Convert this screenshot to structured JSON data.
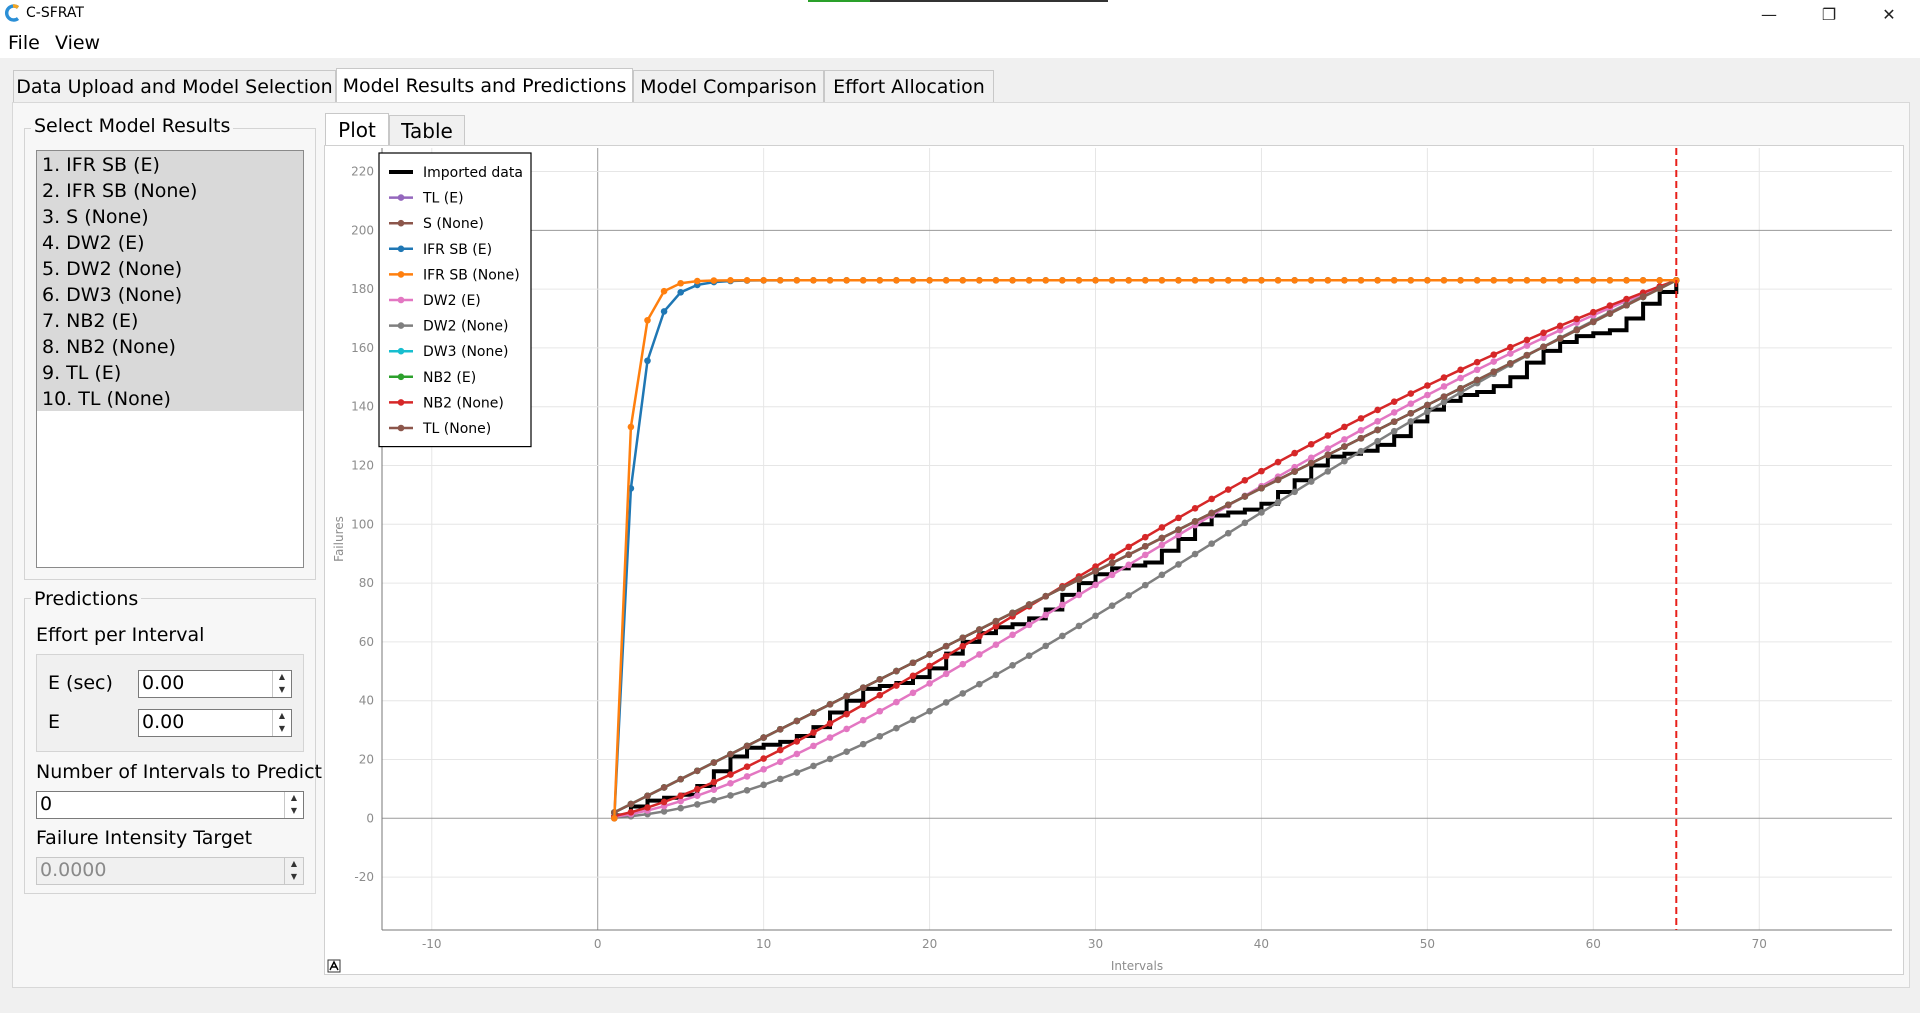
{
  "window": {
    "title": "C-SFRAT",
    "minimize_glyph": "—",
    "restore_glyph": "❐",
    "close_glyph": "✕"
  },
  "menu": {
    "items": [
      "File",
      "View"
    ]
  },
  "tabs": [
    {
      "label": "Data Upload and Model Selection"
    },
    {
      "label": "Model Results and Predictions"
    },
    {
      "label": "Model Comparison"
    },
    {
      "label": "Effort Allocation"
    }
  ],
  "left": {
    "select_title": "Select Model Results",
    "models": [
      "1. IFR SB (E)",
      "2. IFR SB (None)",
      "3. S (None)",
      "4. DW2 (E)",
      "5. DW2 (None)",
      "6. DW3 (None)",
      "7. NB2 (E)",
      "8. NB2 (None)",
      "9. TL (E)",
      "10. TL (None)"
    ],
    "predictions_title": "Predictions",
    "effort_label": "Effort per Interval",
    "e_sec_label": "E (sec)",
    "e_sec_value": "0.00",
    "e_label": "E",
    "e_value": "0.00",
    "intervals_label": "Number of Intervals to Predict",
    "intervals_value": "0",
    "intensity_label": "Failure Intensity Target",
    "intensity_value": "0.0000"
  },
  "subtabs": {
    "plot": "Plot",
    "table": "Table"
  },
  "colors": {
    "imported": "#000000",
    "tl_e": "#9467bd",
    "s_none": "#8c564b",
    "ifr_e": "#1f77b4",
    "ifr_none": "#ff7f0e",
    "dw2_e": "#e377c2",
    "dw2_none": "#7f7f7f",
    "dw3_none": "#17becf",
    "nb2_e": "#2ca02c",
    "nb2_none": "#d62728",
    "tl_none": "#8c564b",
    "vline": "#e8201a"
  },
  "chart_data": {
    "type": "line",
    "title": "",
    "xlabel": "Intervals",
    "ylabel": "Failures",
    "xlim": [
      -13,
      78
    ],
    "ylim": [
      -38,
      228
    ],
    "xticks": [
      -10,
      0,
      10,
      20,
      30,
      40,
      50,
      60,
      70
    ],
    "yticks": [
      -20,
      0,
      20,
      40,
      60,
      80,
      100,
      120,
      140,
      160,
      180,
      200,
      220
    ],
    "grid": true,
    "legend_position": "top-left",
    "vertical_line_x": 65,
    "total_intervals": 65,
    "final_value": 183,
    "series": [
      {
        "name": "Imported data",
        "color_key": "imported",
        "style": "step"
      },
      {
        "name": "TL (E)",
        "color_key": "tl_e",
        "style": "marker",
        "model": "linear"
      },
      {
        "name": "S (None)",
        "color_key": "s_none",
        "style": "marker",
        "model": "linear"
      },
      {
        "name": "IFR SB (E)",
        "color_key": "ifr_e",
        "style": "marker",
        "model": "sat",
        "rate": 0.95
      },
      {
        "name": "IFR SB (None)",
        "color_key": "ifr_none",
        "style": "marker",
        "model": "sat",
        "rate": 1.3
      },
      {
        "name": "DW2 (E)",
        "color_key": "dw2_e",
        "style": "marker",
        "model": "weibull",
        "shape": 1.55,
        "scale": 58
      },
      {
        "name": "DW2 (None)",
        "color_key": "dw2_none",
        "style": "marker",
        "model": "weibull",
        "shape": 1.75,
        "scale": 60
      },
      {
        "name": "DW3 (None)",
        "color_key": "dw3_none",
        "style": "marker",
        "model": "linear"
      },
      {
        "name": "NB2 (E)",
        "color_key": "nb2_e",
        "style": "marker",
        "model": "linear"
      },
      {
        "name": "NB2 (None)",
        "color_key": "nb2_none",
        "style": "marker",
        "model": "weibull",
        "shape": 1.45,
        "scale": 56
      },
      {
        "name": "TL (None)",
        "color_key": "tl_none",
        "style": "marker",
        "model": "linear"
      }
    ]
  }
}
